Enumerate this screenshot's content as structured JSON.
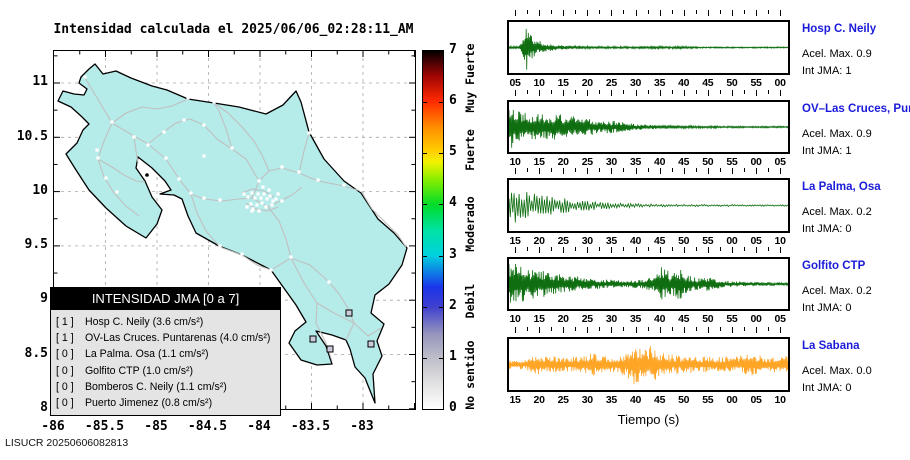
{
  "header": {
    "title": "Intensidad calculada el 2025/06/06_02:28:11_AM",
    "footer": "LISUCR 20250606082813"
  },
  "colors": {
    "land": "#b5ebe9",
    "coastline": "#000000",
    "roads": "#c0c0c0",
    "grid": "#a8a8a8",
    "trace_green": "#0e6e10",
    "trace_orange": "#ffa526",
    "station_name_blue": "#1a1ad9",
    "gray_station_square": "#ccccdd"
  },
  "map": {
    "x_tick_labels": [
      "-86",
      "-85.5",
      "-85",
      "-84.5",
      "-84",
      "-83.5",
      "-83"
    ],
    "y_tick_labels": [
      "8",
      "8.5",
      "9",
      "9.5",
      "10",
      "10.5",
      "11"
    ],
    "white_markers": [
      [
        31,
        26
      ],
      [
        58,
        71
      ],
      [
        80,
        86
      ],
      [
        94,
        94
      ],
      [
        112,
        107
      ],
      [
        125,
        128
      ],
      [
        137,
        142
      ],
      [
        150,
        147
      ],
      [
        166,
        149
      ],
      [
        44,
        107
      ],
      [
        52,
        127
      ],
      [
        43,
        99
      ],
      [
        63,
        141
      ],
      [
        134,
        47
      ],
      [
        160,
        51
      ],
      [
        178,
        97
      ],
      [
        150,
        74
      ],
      [
        130,
        69
      ],
      [
        110,
        81
      ],
      [
        205,
        130
      ],
      [
        228,
        116
      ],
      [
        245,
        121
      ],
      [
        264,
        129
      ],
      [
        290,
        134
      ],
      [
        307,
        139
      ],
      [
        255,
        82
      ],
      [
        237,
        206
      ],
      [
        217,
        219
      ],
      [
        188,
        203
      ],
      [
        166,
        195
      ],
      [
        275,
        231
      ],
      [
        150,
        105
      ],
      [
        190,
        143
      ],
      [
        194,
        146
      ],
      [
        198,
        142
      ],
      [
        201,
        147
      ],
      [
        204,
        143
      ],
      [
        207,
        147
      ],
      [
        210,
        143
      ],
      [
        213,
        148
      ],
      [
        216,
        145
      ],
      [
        219,
        150
      ],
      [
        208,
        152
      ],
      [
        203,
        154
      ],
      [
        197,
        153
      ],
      [
        193,
        156
      ],
      [
        199,
        158
      ],
      [
        205,
        160
      ],
      [
        212,
        156
      ],
      [
        218,
        154
      ],
      [
        222,
        148
      ],
      [
        215,
        139
      ],
      [
        209,
        136
      ],
      [
        224,
        143
      ],
      [
        198,
        160
      ],
      [
        228,
        150
      ]
    ],
    "gray_square_markers": [
      [
        295,
        262
      ],
      [
        317,
        293
      ],
      [
        259,
        288
      ],
      [
        276,
        298
      ]
    ],
    "island_dot": [
      93,
      124
    ],
    "legend": {
      "title": "INTENSIDAD JMA [0 a 7]",
      "items": [
        {
          "bracket": "[ 1 ]",
          "label": "Hosp C. Neily (3.6 cm/s²)"
        },
        {
          "bracket": "[ 1 ]",
          "label": "OV-Las Cruces. Puntarenas (4.0 cm/s²)"
        },
        {
          "bracket": "[ 0 ]",
          "label": "La Palma. Osa (1.1 cm/s²)"
        },
        {
          "bracket": "[ 0 ]",
          "label": "Golfito CTP (1.0 cm/s²)"
        },
        {
          "bracket": "[ 0 ]",
          "label": "Bomberos C. Neily (1.1 cm/s²)"
        },
        {
          "bracket": "[ 0 ]",
          "label": "Puerto Jimenez (0.8 cm/s²)"
        }
      ]
    }
  },
  "colorbar": {
    "tick_labels": [
      "0",
      "1",
      "2",
      "3",
      "4",
      "5",
      "6",
      "7"
    ],
    "category_labels": [
      {
        "text": "No sentido",
        "value": 0.65
      },
      {
        "text": "Debil",
        "value": 2.1
      },
      {
        "text": "Moderado",
        "value": 3.6
      },
      {
        "text": "Fuerte",
        "value": 5.05
      },
      {
        "text": "Muy Fuerte",
        "value": 6.45
      }
    ],
    "gradient_stops": [
      "#ffffff 0%",
      "#e2e2e2 7%",
      "#bfbfca 14%",
      "#9595bd 21%",
      "#4040cf 28.5%",
      "#1b35ea 34%",
      "#00d2de 43%",
      "#00e2a2 50%",
      "#00dc2a 57%",
      "#86ee00 64%",
      "#f2f200 69%",
      "#ffd400 71.5%",
      "#ff9000 78.5%",
      "#ff2a00 86%",
      "#a00505 93%",
      "#1a0000 99%",
      "#000000 100%"
    ]
  },
  "seismograms": {
    "xlabel": "Tiempo (s)",
    "panels": [
      {
        "station": "Hosp C. Neily",
        "accel": "Acel. Max. 0.9",
        "intensity": "Int JMA: 1",
        "color": "#0e6e10",
        "seed": 11,
        "n": 520,
        "x_tick_labels": [
          "05",
          "10",
          "15",
          "20",
          "25",
          "30",
          "35",
          "40",
          "45",
          "50",
          "55",
          "00"
        ],
        "envelope": [
          [
            0,
            0.05
          ],
          [
            0.035,
            0.06
          ],
          [
            0.05,
            0.35
          ],
          [
            0.06,
            1.0
          ],
          [
            0.075,
            0.6
          ],
          [
            0.1,
            0.3
          ],
          [
            0.14,
            0.15
          ],
          [
            0.2,
            0.08
          ],
          [
            0.3,
            0.05
          ],
          [
            0.42,
            0.04
          ],
          [
            0.52,
            0.06
          ],
          [
            0.56,
            0.04
          ],
          [
            0.62,
            0.06
          ],
          [
            0.68,
            0.03
          ],
          [
            1,
            0.025
          ]
        ]
      },
      {
        "station": "OV–Las Cruces, Puntar",
        "accel": "Acel. Max. 0.9",
        "intensity": "Int JMA: 1",
        "color": "#0e6e10",
        "seed": 22,
        "n": 520,
        "x_tick_labels": [
          "10",
          "15",
          "20",
          "25",
          "30",
          "35",
          "40",
          "45",
          "50",
          "55",
          "00",
          "05"
        ],
        "envelope": [
          [
            0,
            1.0
          ],
          [
            0.03,
            0.8
          ],
          [
            0.08,
            0.6
          ],
          [
            0.14,
            0.55
          ],
          [
            0.2,
            0.5
          ],
          [
            0.25,
            0.4
          ],
          [
            0.3,
            0.32
          ],
          [
            0.36,
            0.28
          ],
          [
            0.42,
            0.18
          ],
          [
            0.5,
            0.1
          ],
          [
            0.6,
            0.06
          ],
          [
            0.75,
            0.04
          ],
          [
            1,
            0.03
          ]
        ]
      },
      {
        "station": "La Palma, Osa",
        "accel": "Acel. Max. 0.2",
        "intensity": "Int JMA: 0",
        "color": "#0e6e10",
        "seed": 33,
        "n": 220,
        "x_tick_labels": [
          "15",
          "20",
          "25",
          "30",
          "35",
          "40",
          "45",
          "50",
          "55",
          "00",
          "05",
          "10"
        ],
        "envelope": [
          [
            0,
            0.45
          ],
          [
            0.015,
            0.95
          ],
          [
            0.04,
            0.5
          ],
          [
            0.07,
            0.65
          ],
          [
            0.1,
            0.5
          ],
          [
            0.15,
            0.4
          ],
          [
            0.22,
            0.28
          ],
          [
            0.3,
            0.18
          ],
          [
            0.4,
            0.1
          ],
          [
            0.5,
            0.06
          ],
          [
            0.65,
            0.04
          ],
          [
            1,
            0.035
          ]
        ]
      },
      {
        "station": "Golfito CTP",
        "accel": "Acel. Max. 0.2",
        "intensity": "Int JMA: 0",
        "color": "#0e6e10",
        "seed": 44,
        "n": 520,
        "x_tick_labels": [
          "10",
          "15",
          "20",
          "25",
          "30",
          "35",
          "40",
          "45",
          "50",
          "55",
          "00",
          "05"
        ],
        "envelope": [
          [
            0,
            0.95
          ],
          [
            0.05,
            0.7
          ],
          [
            0.1,
            0.6
          ],
          [
            0.16,
            0.45
          ],
          [
            0.22,
            0.35
          ],
          [
            0.3,
            0.22
          ],
          [
            0.4,
            0.15
          ],
          [
            0.48,
            0.18
          ],
          [
            0.52,
            0.3
          ],
          [
            0.55,
            0.75
          ],
          [
            0.58,
            0.45
          ],
          [
            0.61,
            0.65
          ],
          [
            0.64,
            0.35
          ],
          [
            0.68,
            0.25
          ],
          [
            0.72,
            0.3
          ],
          [
            0.76,
            0.15
          ],
          [
            0.82,
            0.1
          ],
          [
            1,
            0.06
          ]
        ]
      },
      {
        "station": "La Sabana",
        "accel": "Acel. Max. 0.0",
        "intensity": "Int JMA: 0",
        "color": "#ffa526",
        "seed": 55,
        "n": 520,
        "x_tick_labels": [
          "15",
          "20",
          "25",
          "30",
          "35",
          "40",
          "45",
          "50",
          "55",
          "00",
          "05",
          "10"
        ],
        "envelope": [
          [
            0,
            0.2
          ],
          [
            0.06,
            0.22
          ],
          [
            0.1,
            0.4
          ],
          [
            0.14,
            0.35
          ],
          [
            0.2,
            0.32
          ],
          [
            0.26,
            0.3
          ],
          [
            0.3,
            0.5
          ],
          [
            0.33,
            0.32
          ],
          [
            0.38,
            0.35
          ],
          [
            0.42,
            0.45
          ],
          [
            0.45,
            0.9
          ],
          [
            0.48,
            0.55
          ],
          [
            0.51,
            0.75
          ],
          [
            0.54,
            0.5
          ],
          [
            0.58,
            0.4
          ],
          [
            0.64,
            0.35
          ],
          [
            0.7,
            0.32
          ],
          [
            0.76,
            0.3
          ],
          [
            0.82,
            0.35
          ],
          [
            0.88,
            0.45
          ],
          [
            0.92,
            0.3
          ],
          [
            1,
            0.35
          ]
        ]
      }
    ]
  },
  "chart_data": [
    {
      "type": "map",
      "title": "Intensidad calculada el 2025/06/06_02:28:11_AM",
      "region": "Costa Rica",
      "lon_ticks": [
        -86,
        -85.5,
        -85,
        -84.5,
        -84,
        -83.5,
        -83
      ],
      "lat_ticks": [
        8,
        8.5,
        9,
        9.5,
        10,
        10.5,
        11
      ],
      "grid": true,
      "colorbar": {
        "range": [
          0,
          7
        ],
        "ticks": [
          0,
          1,
          2,
          3,
          4,
          5,
          6,
          7
        ],
        "categories": [
          "No sentido",
          "Debil",
          "Moderado",
          "Fuerte",
          "Muy Fuerte"
        ]
      },
      "legend_title": "INTENSIDAD JMA [0 a 7]",
      "stations": [
        {
          "jma_intensity": 1,
          "name": "Hosp C. Neily",
          "accel_cm_s2": 3.6
        },
        {
          "jma_intensity": 1,
          "name": "OV-Las Cruces. Puntarenas",
          "accel_cm_s2": 4.0
        },
        {
          "jma_intensity": 0,
          "name": "La Palma. Osa",
          "accel_cm_s2": 1.1
        },
        {
          "jma_intensity": 0,
          "name": "Golfito CTP",
          "accel_cm_s2": 1.0
        },
        {
          "jma_intensity": 0,
          "name": "Bomberos C. Neily",
          "accel_cm_s2": 1.1
        },
        {
          "jma_intensity": 0,
          "name": "Puerto Jimenez",
          "accel_cm_s2": 0.8
        }
      ]
    },
    {
      "type": "line",
      "xlabel": "Tiempo (s)",
      "note": "5 acceleration seismogram panels; amplitude envelopes estimated 0-1 of panel half-height",
      "series": [
        {
          "name": "Hosp C. Neily",
          "acel_max": 0.9,
          "int_jma": 1,
          "x_ticks_s": [
            5,
            10,
            15,
            20,
            25,
            30,
            35,
            40,
            45,
            50,
            55,
            0
          ]
        },
        {
          "name": "OV–Las Cruces, Puntar",
          "acel_max": 0.9,
          "int_jma": 1,
          "x_ticks_s": [
            10,
            15,
            20,
            25,
            30,
            35,
            40,
            45,
            50,
            55,
            0,
            5
          ]
        },
        {
          "name": "La Palma, Osa",
          "acel_max": 0.2,
          "int_jma": 0,
          "x_ticks_s": [
            15,
            20,
            25,
            30,
            35,
            40,
            45,
            50,
            55,
            0,
            5,
            10
          ]
        },
        {
          "name": "Golfito CTP",
          "acel_max": 0.2,
          "int_jma": 0,
          "x_ticks_s": [
            10,
            15,
            20,
            25,
            30,
            35,
            40,
            45,
            50,
            55,
            0,
            5
          ]
        },
        {
          "name": "La Sabana",
          "acel_max": 0.0,
          "int_jma": 0,
          "x_ticks_s": [
            15,
            20,
            25,
            30,
            35,
            40,
            45,
            50,
            55,
            0,
            5,
            10
          ]
        }
      ]
    }
  ]
}
